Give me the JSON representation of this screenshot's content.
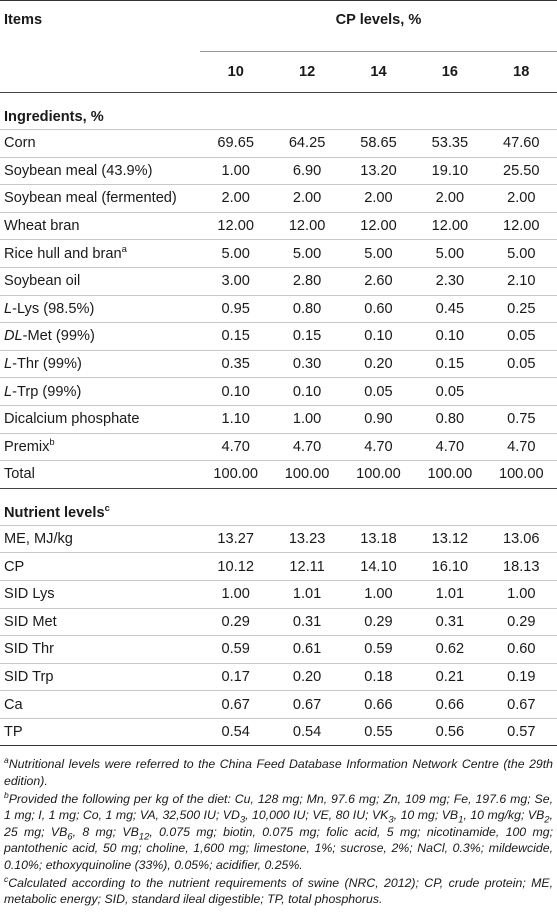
{
  "header": {
    "items_label": "Items",
    "cp_levels_label": "CP levels, %",
    "levels": [
      "10",
      "12",
      "14",
      "16",
      "18"
    ]
  },
  "sections": [
    {
      "title": "Ingredients, %",
      "title_sup": "",
      "rows": [
        {
          "label": "Corn",
          "values": [
            "69.65",
            "64.25",
            "58.65",
            "53.35",
            "47.60"
          ]
        },
        {
          "label": "Soybean meal (43.9%)",
          "values": [
            "1.00",
            "6.90",
            "13.20",
            "19.10",
            "25.50"
          ]
        },
        {
          "label": "Soybean meal (fermented)",
          "values": [
            "2.00",
            "2.00",
            "2.00",
            "2.00",
            "2.00"
          ]
        },
        {
          "label": "Wheat bran",
          "values": [
            "12.00",
            "12.00",
            "12.00",
            "12.00",
            "12.00"
          ]
        },
        {
          "label": "Rice hull and bran",
          "sup": "a",
          "values": [
            "5.00",
            "5.00",
            "5.00",
            "5.00",
            "5.00"
          ]
        },
        {
          "label": "Soybean oil",
          "values": [
            "3.00",
            "2.80",
            "2.60",
            "2.30",
            "2.10"
          ]
        },
        {
          "label_italic": "L",
          "label": "-Lys (98.5%)",
          "values": [
            "0.95",
            "0.80",
            "0.60",
            "0.45",
            "0.25"
          ]
        },
        {
          "label_italic": "DL",
          "label": "-Met (99%)",
          "values": [
            "0.15",
            "0.15",
            "0.10",
            "0.10",
            "0.05"
          ]
        },
        {
          "label_italic": "L",
          "label": "-Thr (99%)",
          "values": [
            "0.35",
            "0.30",
            "0.20",
            "0.15",
            "0.05"
          ]
        },
        {
          "label_italic": "L",
          "label": "-Trp (99%)",
          "values": [
            "0.10",
            "0.10",
            "0.05",
            "0.05",
            ""
          ]
        },
        {
          "label": "Dicalcium phosphate",
          "values": [
            "1.10",
            "1.00",
            "0.90",
            "0.80",
            "0.75"
          ]
        },
        {
          "label": "Premix",
          "sup": "b",
          "values": [
            "4.70",
            "4.70",
            "4.70",
            "4.70",
            "4.70"
          ]
        },
        {
          "label": "Total",
          "values": [
            "100.00",
            "100.00",
            "100.00",
            "100.00",
            "100.00"
          ]
        }
      ]
    },
    {
      "title": "Nutrient levels",
      "title_sup": "c",
      "rows": [
        {
          "label": "ME, MJ/kg",
          "values": [
            "13.27",
            "13.23",
            "13.18",
            "13.12",
            "13.06"
          ]
        },
        {
          "label": "CP",
          "values": [
            "10.12",
            "12.11",
            "14.10",
            "16.10",
            "18.13"
          ]
        },
        {
          "label": "SID Lys",
          "values": [
            "1.00",
            "1.01",
            "1.00",
            "1.01",
            "1.00"
          ]
        },
        {
          "label": "SID Met",
          "values": [
            "0.29",
            "0.31",
            "0.29",
            "0.31",
            "0.29"
          ]
        },
        {
          "label": "SID Thr",
          "values": [
            "0.59",
            "0.61",
            "0.59",
            "0.62",
            "0.60"
          ]
        },
        {
          "label": "SID Trp",
          "values": [
            "0.17",
            "0.20",
            "0.18",
            "0.21",
            "0.19"
          ]
        },
        {
          "label": "Ca",
          "values": [
            "0.67",
            "0.67",
            "0.66",
            "0.66",
            "0.67"
          ]
        },
        {
          "label": "TP",
          "values": [
            "0.54",
            "0.54",
            "0.55",
            "0.56",
            "0.57"
          ]
        }
      ]
    }
  ],
  "footnotes": {
    "a": {
      "mark": "a",
      "text": "Nutritional levels were referred to the China Feed Database Information Network Centre (the 29th edition)."
    },
    "b": {
      "mark": "b",
      "p1": "Provided the following per kg of the diet: Cu, 128 mg; Mn, 97.6 mg; Zn, 109 mg; Fe, 197.6 mg; Se, 1 mg; I, 1 mg; Co, 1 mg; VA, 32,500 IU; VD",
      "s1": "3",
      "p2": ", 10,000 IU; VE, 80 IU; VK",
      "s2": "3",
      "p3": ", 10 mg; VB",
      "s3": "1",
      "p4": ", 10 mg/kg; VB",
      "s4": "2",
      "p5": ", 25 mg; VB",
      "s5": "6",
      "p6": ", 8 mg; VB",
      "s6": "12",
      "p7": ", 0.075 mg; biotin, 0.075 mg; folic acid, 5 mg; nicotinamide, 100 mg; pantothenic acid, 50 mg; choline, 1,600 mg; limestone, 1%; sucrose, 2%; NaCl, 0.3%; mildewcide, 0.10%; ethoxyquinoline (33%), 0.05%; acidifier, 0.25%."
    },
    "c": {
      "mark": "c",
      "text": "Calculated according to the nutrient requirements of swine (NRC, 2012); CP, crude protein; ME, metabolic energy; SID, standard ileal digestible; TP, total phosphorus."
    }
  }
}
